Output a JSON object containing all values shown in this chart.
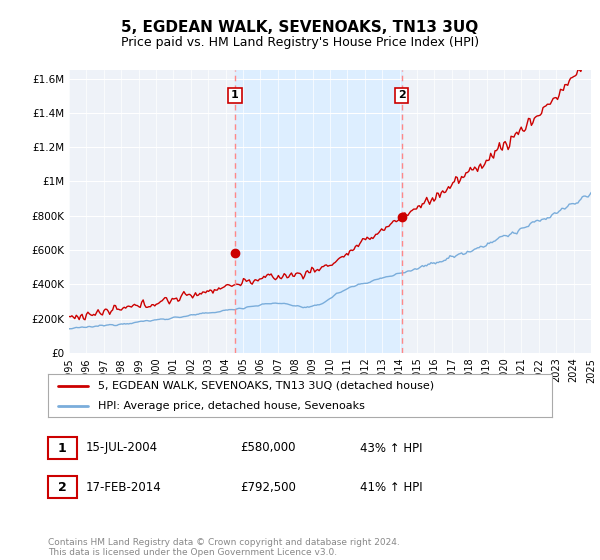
{
  "title": "5, EGDEAN WALK, SEVENOAKS, TN13 3UQ",
  "subtitle": "Price paid vs. HM Land Registry's House Price Index (HPI)",
  "ylim": [
    0,
    1650000
  ],
  "yticks": [
    0,
    200000,
    400000,
    600000,
    800000,
    1000000,
    1200000,
    1400000,
    1600000
  ],
  "ytick_labels": [
    "£0",
    "£200K",
    "£400K",
    "£600K",
    "£800K",
    "£1M",
    "£1.2M",
    "£1.4M",
    "£1.6M"
  ],
  "x_start_year": 1995,
  "x_end_year": 2025,
  "sale1_date": 2004.54,
  "sale1_price": 580000,
  "sale2_date": 2014.12,
  "sale2_price": 792500,
  "legend_house": "5, EGDEAN WALK, SEVENOAKS, TN13 3UQ (detached house)",
  "legend_hpi": "HPI: Average price, detached house, Sevenoaks",
  "footnote": "Contains HM Land Registry data © Crown copyright and database right 2024.\nThis data is licensed under the Open Government Licence v3.0.",
  "house_color": "#cc0000",
  "hpi_color": "#7aaddb",
  "shade_color": "#ddeeff",
  "dashed_line_color": "#ff8888",
  "bg_color": "#ffffff",
  "plot_bg_color": "#eef2f8"
}
